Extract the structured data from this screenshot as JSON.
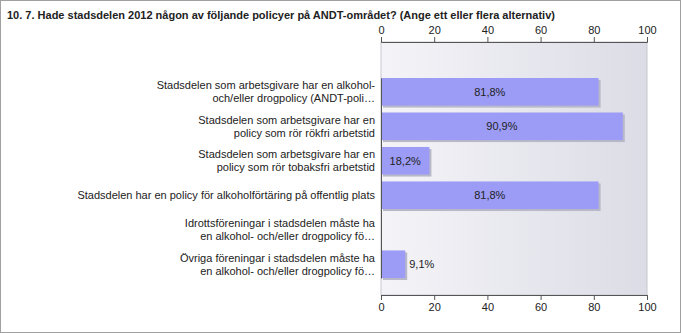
{
  "chart_data": {
    "type": "bar",
    "orientation": "horizontal",
    "title": "10. 7. Hade stadsdelen 2012 någon av följande policyer på ANDT-området? (Ange ett eller flera alternativ)",
    "categories": [
      "Stadsdelen som arbetsgivare har en alkohol-\noch/eller drogpolicy (ANDT-poli…",
      "Stadsdelen som arbetsgivare har en\npolicy som rör rökfri arbetstid",
      "Stadsdelen som arbetsgivare har en\npolicy som rör tobaksfri arbetstid",
      "Stadsdelen har en policy för alkoholförtäring på offentlig plats",
      "Idrottsföreningar i stadsdelen måste ha\nen alkohol- och/eller drogpolicy fö…",
      "Övriga föreningar i stadsdelen måste ha\nen alkohol- och/eller drogpolicy fö…"
    ],
    "values": [
      81.8,
      90.9,
      18.2,
      81.8,
      0,
      9.1
    ],
    "value_labels": [
      "81,8%",
      "90,9%",
      "18,2%",
      "81,8%",
      null,
      "9,1%"
    ],
    "data_labels": true,
    "color": "#9c9cf7",
    "xlim": [
      0,
      100
    ],
    "xticks": [
      0,
      20,
      40,
      60,
      80,
      100
    ],
    "grid": false
  }
}
